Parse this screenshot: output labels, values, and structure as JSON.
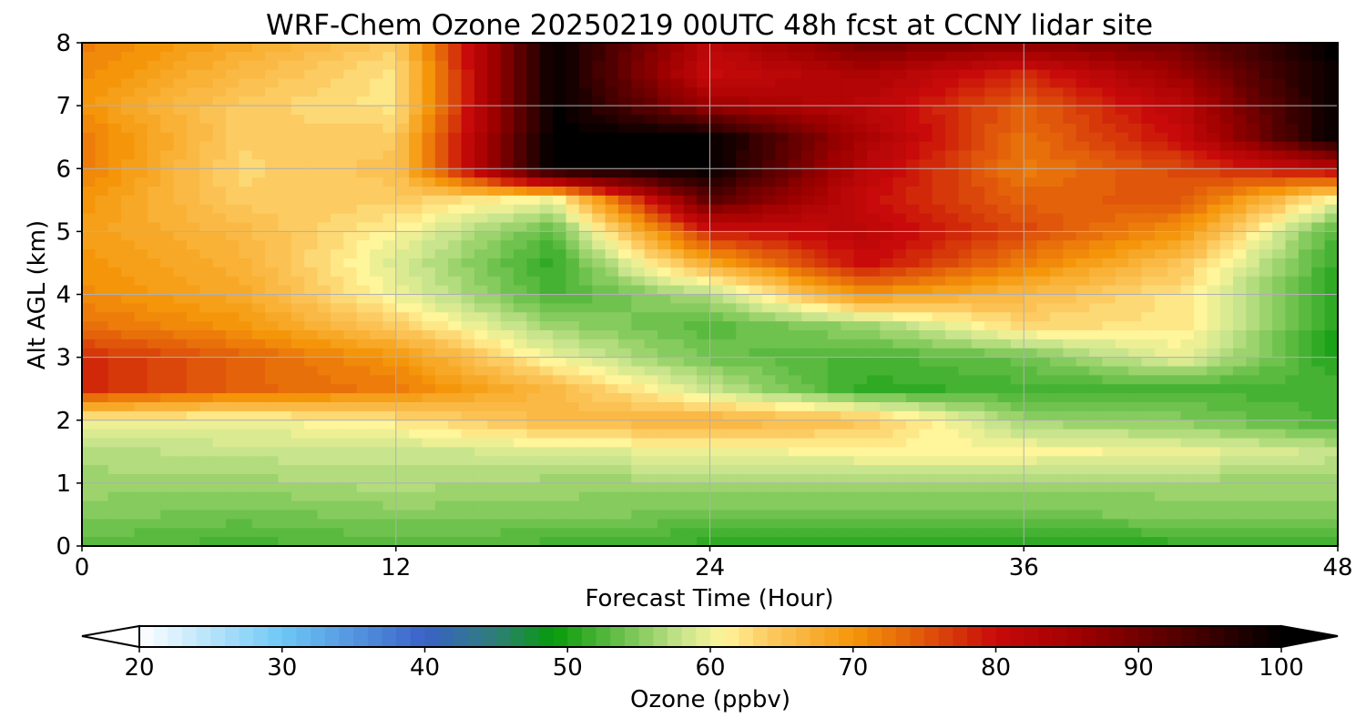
{
  "chart_data": {
    "type": "heatmap",
    "title": "WRF-Chem Ozone  20250219 00UTC 48h fcst at CCNY lidar site",
    "xlabel": "Forecast Time (Hour)",
    "ylabel": "Alt AGL (km)",
    "xlim": [
      0,
      48
    ],
    "ylim": [
      0,
      8
    ],
    "xticks": [
      "0",
      "12",
      "24",
      "36",
      "48"
    ],
    "yticks": [
      "0",
      "1",
      "2",
      "3",
      "4",
      "5",
      "6",
      "7",
      "8"
    ],
    "grid": true,
    "x_hours": [
      0,
      6,
      12,
      18,
      24,
      30,
      36,
      42,
      48
    ],
    "y_km": [
      0,
      0.5,
      1,
      1.5,
      2,
      2.5,
      3,
      3.5,
      4,
      4.5,
      5,
      5.5,
      6,
      6.5,
      7,
      7.5,
      8
    ],
    "ozone_ppbv": [
      [
        53,
        52,
        53,
        52,
        51,
        51,
        50,
        51,
        51
      ],
      [
        55,
        54,
        55,
        55,
        54,
        54,
        54,
        55,
        55
      ],
      [
        56,
        56,
        57,
        56,
        56,
        56,
        56,
        56,
        56
      ],
      [
        57,
        58,
        58,
        59,
        60,
        61,
        61,
        60,
        58
      ],
      [
        61,
        60,
        62,
        66,
        67,
        65,
        56,
        55,
        52
      ],
      [
        78,
        74,
        72,
        66,
        58,
        51,
        52,
        52,
        52
      ],
      [
        78,
        74,
        70,
        60,
        54,
        52,
        54,
        60,
        50
      ],
      [
        73,
        70,
        64,
        56,
        53,
        56,
        63,
        62,
        50
      ],
      [
        71,
        68,
        60,
        52,
        57,
        70,
        66,
        62,
        50
      ],
      [
        70,
        67,
        59,
        51,
        68,
        80,
        72,
        65,
        51
      ],
      [
        69,
        66,
        61,
        53,
        79,
        82,
        76,
        70,
        52
      ],
      [
        70,
        64,
        64,
        60,
        92,
        80,
        74,
        75,
        60
      ],
      [
        72,
        63,
        65,
        100,
        100,
        82,
        72,
        76,
        82
      ],
      [
        72,
        64,
        64,
        100,
        100,
        84,
        73,
        80,
        100
      ],
      [
        70,
        64,
        62,
        100,
        86,
        82,
        74,
        82,
        100
      ],
      [
        71,
        66,
        62,
        100,
        80,
        84,
        78,
        86,
        100
      ],
      [
        72,
        68,
        64,
        100,
        82,
        90,
        88,
        90,
        100
      ]
    ],
    "colorbar": {
      "label": "Ozone  (ppbv)",
      "min": 20,
      "max": 100,
      "ticks": [
        "20",
        "30",
        "40",
        "50",
        "60",
        "70",
        "80",
        "90",
        "100"
      ],
      "extend": "both",
      "stops": [
        {
          "v": 20,
          "c": "#ffffff"
        },
        {
          "v": 30,
          "c": "#6ec8f5"
        },
        {
          "v": 40,
          "c": "#3a62c8"
        },
        {
          "v": 45,
          "c": "#2e7e78"
        },
        {
          "v": 49,
          "c": "#069a0a"
        },
        {
          "v": 54,
          "c": "#6fc24e"
        },
        {
          "v": 58,
          "c": "#c8e48c"
        },
        {
          "v": 61,
          "c": "#fff59a"
        },
        {
          "v": 64,
          "c": "#fccb62"
        },
        {
          "v": 70,
          "c": "#f5960a"
        },
        {
          "v": 75,
          "c": "#e0560a"
        },
        {
          "v": 80,
          "c": "#c80a0a"
        },
        {
          "v": 86,
          "c": "#9e0000"
        },
        {
          "v": 95,
          "c": "#3a0000"
        },
        {
          "v": 100,
          "c": "#000000"
        }
      ]
    }
  }
}
